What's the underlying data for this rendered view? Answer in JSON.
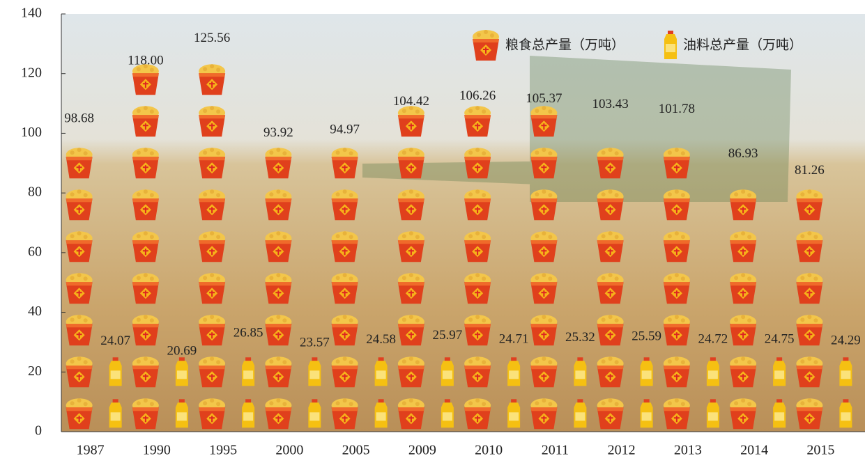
{
  "chart_data": {
    "type": "pictograph",
    "categories": [
      "1987",
      "1990",
      "1995",
      "2000",
      "2005",
      "2009",
      "2010",
      "2011",
      "2012",
      "2013",
      "2014",
      "2015"
    ],
    "series": [
      {
        "name": "粮食总产量（万吨）",
        "color": "#e8421c",
        "values": [
          98.68,
          118.0,
          125.56,
          93.92,
          94.97,
          104.42,
          106.26,
          105.37,
          103.43,
          101.78,
          86.93,
          81.26
        ],
        "value_labels": [
          "98.68",
          "118.00",
          "125.56",
          "93.92",
          "94.97",
          "104.42",
          "106.26",
          "105.37",
          "103.43",
          "101.78",
          "86.93",
          "81.26"
        ]
      },
      {
        "name": "油料总产量（万吨）",
        "color": "#f2b705",
        "values": [
          24.07,
          20.69,
          26.85,
          23.57,
          24.58,
          25.97,
          24.71,
          25.32,
          25.59,
          24.72,
          24.75,
          24.29
        ]
      }
    ],
    "ylim": [
      0,
      140
    ],
    "yticks": [
      0,
      20,
      40,
      60,
      80,
      100,
      120,
      140
    ],
    "legend": "top-right"
  }
}
